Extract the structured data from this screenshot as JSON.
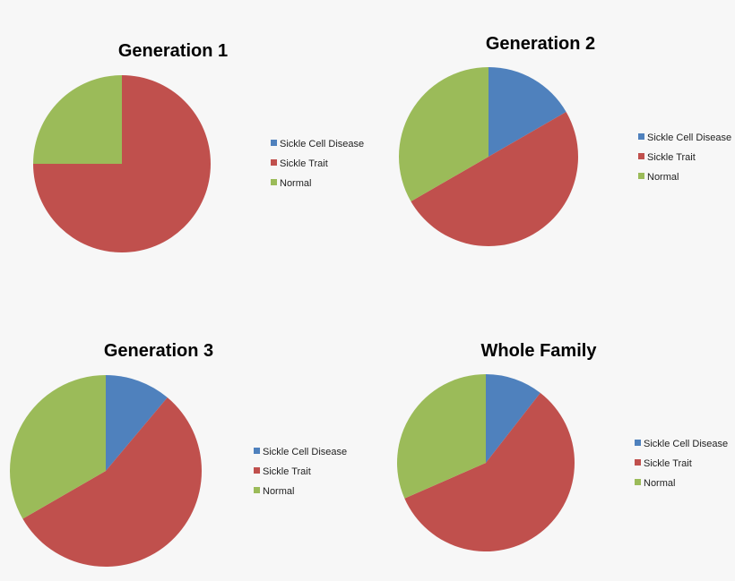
{
  "chart_data": [
    {
      "type": "pie",
      "title": "Generation 1",
      "categories": [
        "Sickle Cell Disease",
        "Sickle Trait",
        "Normal"
      ],
      "values": [
        0,
        3,
        1
      ],
      "colors": [
        "#4f81bd",
        "#c0504d",
        "#9bbb59"
      ],
      "legend": "right"
    },
    {
      "type": "pie",
      "title": "Generation 2",
      "categories": [
        "Sickle Cell Disease",
        "Sickle Trait",
        "Normal"
      ],
      "values": [
        1,
        3,
        2
      ],
      "colors": [
        "#4f81bd",
        "#c0504d",
        "#9bbb59"
      ],
      "legend": "right"
    },
    {
      "type": "pie",
      "title": "Generation 3",
      "categories": [
        "Sickle Cell Disease",
        "Sickle Trait",
        "Normal"
      ],
      "values": [
        1,
        5,
        3
      ],
      "colors": [
        "#4f81bd",
        "#c0504d",
        "#9bbb59"
      ],
      "legend": "right"
    },
    {
      "type": "pie",
      "title": "Whole Family",
      "categories": [
        "Sickle Cell Disease",
        "Sickle Trait",
        "Normal"
      ],
      "values": [
        2,
        11,
        6
      ],
      "colors": [
        "#4f81bd",
        "#c0504d",
        "#9bbb59"
      ],
      "legend": "right"
    }
  ]
}
